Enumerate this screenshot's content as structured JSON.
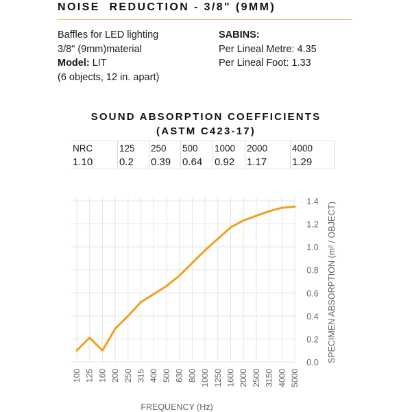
{
  "header": {
    "title": "NOISE  REDUCTION - 3/8\" (9MM)"
  },
  "info": {
    "left_lines": [
      "Baffles for LED lighting",
      "3/8\" (9mm)material"
    ],
    "model_label": "Model:",
    "model_value": " LIT",
    "objects_note": "(6 objects, 12 in. apart)"
  },
  "sabins": {
    "label": "SABINS:",
    "per_metre": "Per Lineal Metre: 4.35",
    "per_foot": "Per Lineal Foot: 1.33"
  },
  "coefficients": {
    "title_line1": "SOUND ABSORPTION COEFFICIENTS",
    "title_line2": "(ASTM C423-17)",
    "headers": [
      "NRC",
      "125",
      "250",
      "500",
      "1000",
      "2000",
      "4000"
    ],
    "values": [
      "1.10",
      "0.2",
      "0.39",
      "0.64",
      "0.92",
      "1.17",
      "1.29"
    ]
  },
  "chart_data": {
    "type": "line",
    "title": "",
    "xlabel": "FREQUENCY (Hz)",
    "ylabel": "SPECIMEN ABSORPTION (m² / OBJECT)",
    "x": [
      "100",
      "125",
      "160",
      "200",
      "250",
      "315",
      "400",
      "500",
      "630",
      "800",
      "1000",
      "1250",
      "1600",
      "2000",
      "2500",
      "3150",
      "4000",
      "5000"
    ],
    "series": [
      {
        "values": [
          0.1,
          0.21,
          0.1,
          0.29,
          0.4,
          0.52,
          0.59,
          0.66,
          0.75,
          0.86,
          0.97,
          1.07,
          1.17,
          1.23,
          1.27,
          1.31,
          1.34,
          1.35
        ],
        "color": "#f0a020"
      }
    ],
    "ylim": [
      0,
      1.4
    ],
    "yticks": [
      "0.0",
      "0.2",
      "0.4",
      "0.6",
      "0.8",
      "1.0",
      "1.2",
      "1.4"
    ],
    "grid": true,
    "y_axis_side": "right",
    "colors": {
      "line": "#f0a020",
      "grid": "#e4e4e4",
      "axis_text": "#666666"
    }
  }
}
